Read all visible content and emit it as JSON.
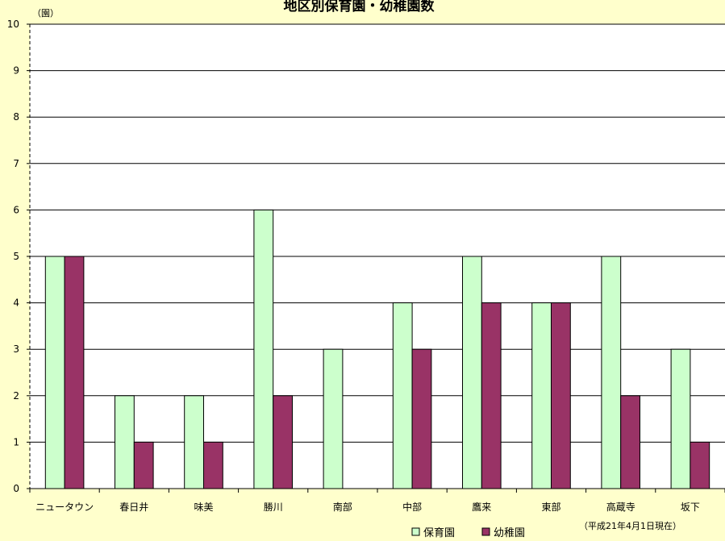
{
  "chart_data": {
    "type": "bar",
    "title": "地区別保育園・幼稚園数",
    "ylabel": "（園）",
    "xlabel": "",
    "ylim": [
      0,
      10
    ],
    "yticks": [
      0,
      1,
      2,
      3,
      4,
      5,
      6,
      7,
      8,
      9,
      10
    ],
    "grid": true,
    "categories": [
      "ニュータウン",
      "春日井",
      "味美",
      "勝川",
      "南部",
      "中部",
      "鷹来",
      "東部",
      "高蔵寺",
      "坂下"
    ],
    "series": [
      {
        "name": "保育園",
        "color": "#ccffcc",
        "values": [
          5,
          2,
          2,
          6,
          3,
          4,
          5,
          4,
          5,
          3
        ]
      },
      {
        "name": "幼稚園",
        "color": "#993366",
        "values": [
          5,
          1,
          1,
          2,
          0,
          3,
          4,
          4,
          2,
          1
        ]
      }
    ],
    "legend_position": "bottom",
    "annotation": "（平成21年4月1日現在）"
  },
  "colors": {
    "background": "#ffffcc",
    "plot_area": "#ffffff",
    "grid": "#000000"
  }
}
